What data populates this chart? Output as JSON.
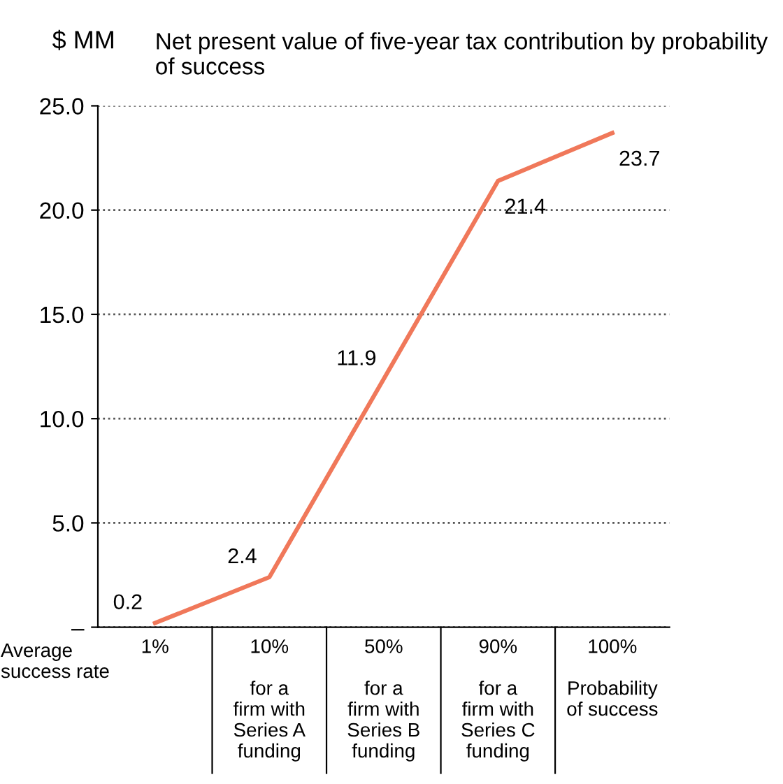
{
  "chart_data": {
    "type": "line",
    "title": "Net present value of five-year tax contribution by probability of success",
    "ylabel": "$ MM",
    "categories": [
      "1%",
      "10%\n\nfor a\nfirm with\nSeries A\nfunding",
      "50%\n\nfor a\nfirm with\nSeries B\nfunding",
      "90%\n\nfor a\nfirm with\nSeries C\nfunding",
      "100%\n\nProbability\nof success"
    ],
    "series": [
      {
        "color": "#f0785a",
        "values": [
          0.2,
          2.4,
          11.9,
          21.4,
          23.7
        ]
      }
    ],
    "ylim": [
      0,
      25
    ],
    "yticks": [
      {
        "value": 0,
        "label": "–"
      },
      {
        "value": 5,
        "label": "5.0"
      },
      {
        "value": 10,
        "label": "10.0"
      },
      {
        "value": 15,
        "label": "15.0"
      },
      {
        "value": 20,
        "label": "20.0"
      },
      {
        "value": 25,
        "label": "25.0"
      }
    ],
    "grid": "y",
    "data_labels": true,
    "marker": "none",
    "line_style": "solid",
    "annotations": [
      "Average\nsuccess rate"
    ]
  }
}
